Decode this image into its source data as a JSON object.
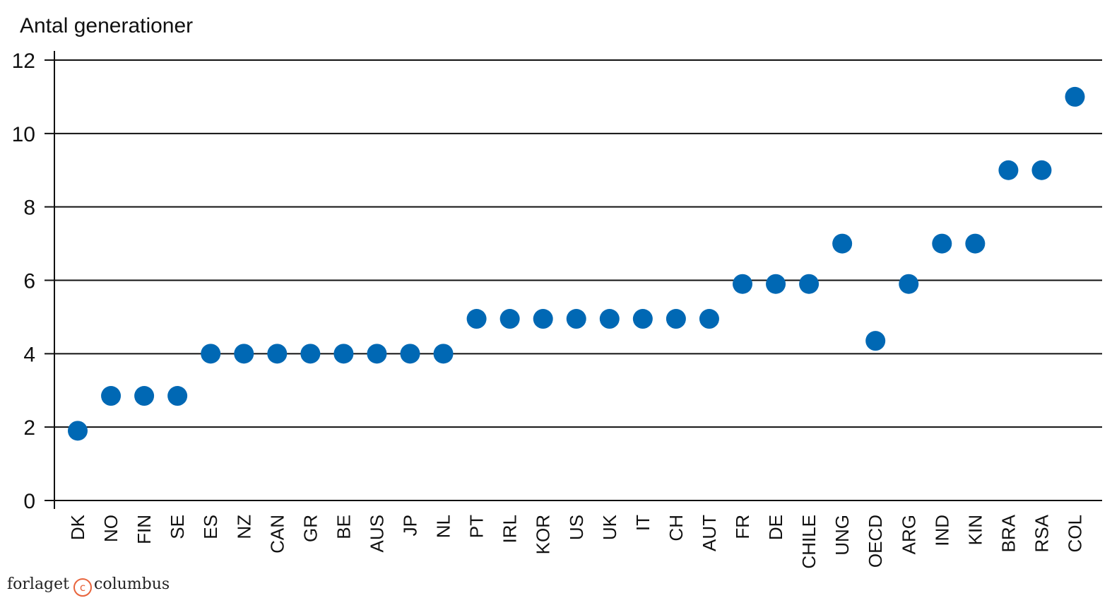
{
  "chart_data": {
    "type": "scatter",
    "title": "",
    "ylabel": "Antal generationer",
    "xlabel": "",
    "ylim": [
      0,
      12
    ],
    "yticks": [
      0,
      2,
      4,
      6,
      8,
      10,
      12
    ],
    "grid": true,
    "marker_color": "#0068b4",
    "categories": [
      "DK",
      "NO",
      "FIN",
      "SE",
      "ES",
      "NZ",
      "CAN",
      "GR",
      "BE",
      "AUS",
      "JP",
      "NL",
      "PT",
      "IRL",
      "KOR",
      "US",
      "UK",
      "IT",
      "CH",
      "AUT",
      "FR",
      "DE",
      "CHILE",
      "UNG",
      "OECD",
      "ARG",
      "IND",
      "KIN",
      "BRA",
      "RSA",
      "COL"
    ],
    "values": [
      1.9,
      2.85,
      2.85,
      2.85,
      4,
      4,
      4,
      4,
      4,
      4,
      4,
      4,
      4.95,
      4.95,
      4.95,
      4.95,
      4.95,
      4.95,
      4.95,
      4.95,
      5.9,
      5.9,
      5.9,
      7,
      4.35,
      5.9,
      7,
      7,
      9,
      9,
      11
    ]
  },
  "footer": {
    "publisher_left": "forlaget",
    "publisher_mark": "c",
    "publisher_right": "columbus"
  }
}
